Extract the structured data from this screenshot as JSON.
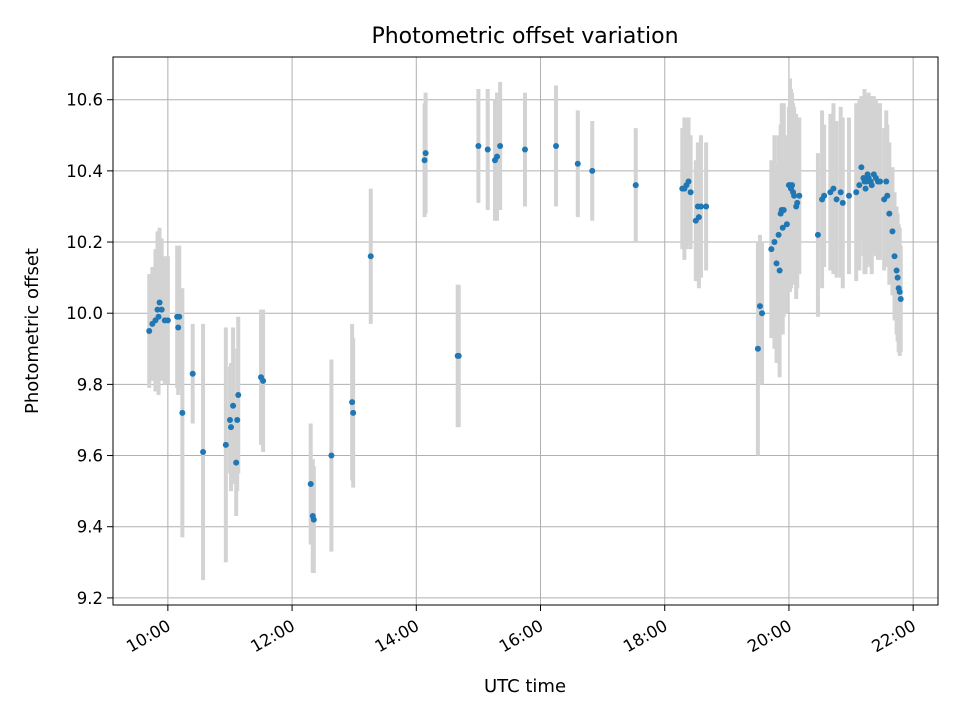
{
  "chart_data": {
    "type": "scatter",
    "title": "Photometric offset variation",
    "xlabel": "UTC time",
    "ylabel": "Photometric offset",
    "xlim": [
      "09:07",
      "22:24"
    ],
    "ylim": [
      9.18,
      10.72
    ],
    "x_ticks": [
      "10:00",
      "12:00",
      "14:00",
      "16:00",
      "18:00",
      "20:00",
      "22:00"
    ],
    "y_ticks": [
      "9.2",
      "9.4",
      "9.6",
      "9.8",
      "10.0",
      "10.2",
      "10.4",
      "10.6"
    ],
    "grid": true,
    "colors": {
      "point": "#1f77b4",
      "errorbar": "#d3d3d3",
      "grid": "#b0b0b0"
    },
    "points": [
      {
        "x": "09:42",
        "y": 9.95,
        "err": 0.16
      },
      {
        "x": "09:45",
        "y": 9.97,
        "err": 0.16
      },
      {
        "x": "09:48",
        "y": 9.98,
        "err": 0.2
      },
      {
        "x": "09:50",
        "y": 10.01,
        "err": 0.22
      },
      {
        "x": "09:51",
        "y": 9.99,
        "err": 0.22
      },
      {
        "x": "09:52",
        "y": 10.03,
        "err": 0.21
      },
      {
        "x": "09:54",
        "y": 10.01,
        "err": 0.2
      },
      {
        "x": "09:57",
        "y": 9.98,
        "err": 0.18
      },
      {
        "x": "10:00",
        "y": 9.98,
        "err": 0.18
      },
      {
        "x": "10:09",
        "y": 9.99,
        "err": 0.2
      },
      {
        "x": "10:10",
        "y": 9.96,
        "err": 0.19
      },
      {
        "x": "10:11",
        "y": 9.99,
        "err": 0.2
      },
      {
        "x": "10:14",
        "y": 9.72,
        "err": 0.35
      },
      {
        "x": "10:24",
        "y": 9.83,
        "err": 0.14
      },
      {
        "x": "10:34",
        "y": 9.61,
        "err": 0.36
      },
      {
        "x": "10:56",
        "y": 9.63,
        "err": 0.33
      },
      {
        "x": "11:00",
        "y": 9.7,
        "err": 0.15
      },
      {
        "x": "11:01",
        "y": 9.68,
        "err": 0.18
      },
      {
        "x": "11:03",
        "y": 9.74,
        "err": 0.22
      },
      {
        "x": "11:06",
        "y": 9.58,
        "err": 0.15
      },
      {
        "x": "11:07",
        "y": 9.7,
        "err": 0.2
      },
      {
        "x": "11:08",
        "y": 9.77,
        "err": 0.22
      },
      {
        "x": "11:30",
        "y": 9.82,
        "err": 0.19
      },
      {
        "x": "11:32",
        "y": 9.81,
        "err": 0.2
      },
      {
        "x": "12:18",
        "y": 9.52,
        "err": 0.17
      },
      {
        "x": "12:20",
        "y": 9.43,
        "err": 0.16
      },
      {
        "x": "12:21",
        "y": 9.42,
        "err": 0.15
      },
      {
        "x": "12:38",
        "y": 9.6,
        "err": 0.27
      },
      {
        "x": "12:58",
        "y": 9.75,
        "err": 0.22
      },
      {
        "x": "12:59",
        "y": 9.72,
        "err": 0.21
      },
      {
        "x": "13:16",
        "y": 10.16,
        "err": 0.19
      },
      {
        "x": "14:08",
        "y": 10.43,
        "err": 0.16
      },
      {
        "x": "14:09",
        "y": 10.45,
        "err": 0.17
      },
      {
        "x": "14:40",
        "y": 9.88,
        "err": 0.2
      },
      {
        "x": "14:41",
        "y": 9.88,
        "err": 0.2
      },
      {
        "x": "15:00",
        "y": 10.47,
        "err": 0.16
      },
      {
        "x": "15:09",
        "y": 10.46,
        "err": 0.17
      },
      {
        "x": "15:16",
        "y": 10.43,
        "err": 0.17
      },
      {
        "x": "15:18",
        "y": 10.44,
        "err": 0.18
      },
      {
        "x": "15:21",
        "y": 10.47,
        "err": 0.18
      },
      {
        "x": "15:45",
        "y": 10.46,
        "err": 0.16
      },
      {
        "x": "16:15",
        "y": 10.47,
        "err": 0.17
      },
      {
        "x": "16:36",
        "y": 10.42,
        "err": 0.15
      },
      {
        "x": "16:50",
        "y": 10.4,
        "err": 0.14
      },
      {
        "x": "17:32",
        "y": 10.36,
        "err": 0.16
      },
      {
        "x": "18:17",
        "y": 10.35,
        "err": 0.17
      },
      {
        "x": "18:19",
        "y": 10.35,
        "err": 0.2
      },
      {
        "x": "18:21",
        "y": 10.36,
        "err": 0.18
      },
      {
        "x": "18:23",
        "y": 10.37,
        "err": 0.18
      },
      {
        "x": "18:25",
        "y": 10.34,
        "err": 0.16
      },
      {
        "x": "18:30",
        "y": 10.26,
        "err": 0.17
      },
      {
        "x": "18:32",
        "y": 10.3,
        "err": 0.18
      },
      {
        "x": "18:33",
        "y": 10.27,
        "err": 0.2
      },
      {
        "x": "18:35",
        "y": 10.3,
        "err": 0.2
      },
      {
        "x": "18:40",
        "y": 10.3,
        "err": 0.18
      },
      {
        "x": "19:30",
        "y": 9.9,
        "err": 0.3
      },
      {
        "x": "19:32",
        "y": 10.02,
        "err": 0.2
      },
      {
        "x": "19:34",
        "y": 10.0,
        "err": 0.2
      },
      {
        "x": "19:43",
        "y": 10.18,
        "err": 0.25
      },
      {
        "x": "19:46",
        "y": 10.2,
        "err": 0.3
      },
      {
        "x": "19:48",
        "y": 10.14,
        "err": 0.28
      },
      {
        "x": "19:50",
        "y": 10.22,
        "err": 0.28
      },
      {
        "x": "19:51",
        "y": 10.12,
        "err": 0.3
      },
      {
        "x": "19:52",
        "y": 10.28,
        "err": 0.25
      },
      {
        "x": "19:53",
        "y": 10.29,
        "err": 0.3
      },
      {
        "x": "19:54",
        "y": 10.24,
        "err": 0.3
      },
      {
        "x": "19:55",
        "y": 10.29,
        "err": 0.3
      },
      {
        "x": "19:58",
        "y": 10.25,
        "err": 0.25
      },
      {
        "x": "20:00",
        "y": 10.36,
        "err": 0.22
      },
      {
        "x": "20:01",
        "y": 10.36,
        "err": 0.3
      },
      {
        "x": "20:02",
        "y": 10.35,
        "err": 0.28
      },
      {
        "x": "20:03",
        "y": 10.36,
        "err": 0.26
      },
      {
        "x": "20:04",
        "y": 10.34,
        "err": 0.25
      },
      {
        "x": "20:05",
        "y": 10.33,
        "err": 0.25
      },
      {
        "x": "20:07",
        "y": 10.3,
        "err": 0.26
      },
      {
        "x": "20:08",
        "y": 10.31,
        "err": 0.24
      },
      {
        "x": "20:10",
        "y": 10.33,
        "err": 0.22
      },
      {
        "x": "20:28",
        "y": 10.22,
        "err": 0.23
      },
      {
        "x": "20:32",
        "y": 10.32,
        "err": 0.25
      },
      {
        "x": "20:34",
        "y": 10.33,
        "err": 0.2
      },
      {
        "x": "20:40",
        "y": 10.34,
        "err": 0.22
      },
      {
        "x": "20:43",
        "y": 10.35,
        "err": 0.24
      },
      {
        "x": "20:46",
        "y": 10.32,
        "err": 0.22
      },
      {
        "x": "20:50",
        "y": 10.34,
        "err": 0.24
      },
      {
        "x": "20:52",
        "y": 10.31,
        "err": 0.24
      },
      {
        "x": "20:58",
        "y": 10.33,
        "err": 0.22
      },
      {
        "x": "21:05",
        "y": 10.34,
        "err": 0.25
      },
      {
        "x": "21:08",
        "y": 10.36,
        "err": 0.24
      },
      {
        "x": "21:10",
        "y": 10.41,
        "err": 0.2
      },
      {
        "x": "21:12",
        "y": 10.38,
        "err": 0.22
      },
      {
        "x": "21:13",
        "y": 10.37,
        "err": 0.26
      },
      {
        "x": "21:14",
        "y": 10.35,
        "err": 0.24
      },
      {
        "x": "21:15",
        "y": 10.37,
        "err": 0.24
      },
      {
        "x": "21:16",
        "y": 10.39,
        "err": 0.22
      },
      {
        "x": "21:17",
        "y": 10.38,
        "err": 0.24
      },
      {
        "x": "21:19",
        "y": 10.37,
        "err": 0.24
      },
      {
        "x": "21:20",
        "y": 10.36,
        "err": 0.25
      },
      {
        "x": "21:22",
        "y": 10.39,
        "err": 0.22
      },
      {
        "x": "21:24",
        "y": 10.38,
        "err": 0.22
      },
      {
        "x": "21:26",
        "y": 10.37,
        "err": 0.22
      },
      {
        "x": "21:28",
        "y": 10.37,
        "err": 0.22
      },
      {
        "x": "21:32",
        "y": 10.32,
        "err": 0.2
      },
      {
        "x": "21:34",
        "y": 10.37,
        "err": 0.2
      },
      {
        "x": "21:35",
        "y": 10.33,
        "err": 0.2
      },
      {
        "x": "21:37",
        "y": 10.28,
        "err": 0.2
      },
      {
        "x": "21:40",
        "y": 10.23,
        "err": 0.18
      },
      {
        "x": "21:42",
        "y": 10.16,
        "err": 0.18
      },
      {
        "x": "21:44",
        "y": 10.12,
        "err": 0.18
      },
      {
        "x": "21:45",
        "y": 10.1,
        "err": 0.18
      },
      {
        "x": "21:46",
        "y": 10.07,
        "err": 0.18
      },
      {
        "x": "21:47",
        "y": 10.06,
        "err": 0.18
      },
      {
        "x": "21:48",
        "y": 10.04,
        "err": 0.15
      }
    ]
  }
}
